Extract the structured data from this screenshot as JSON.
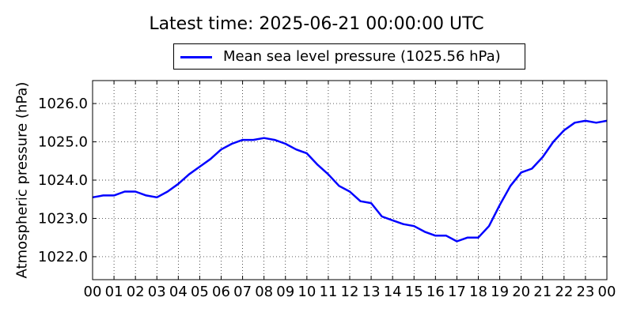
{
  "chart_data": {
    "type": "line",
    "title": "Latest time: 2025-06-21 00:00:00 UTC",
    "ylabel": "Atmospheric pressure (hPa)",
    "xlabel": "",
    "xlim": [
      0,
      24
    ],
    "ylim": [
      1021.4,
      1026.6
    ],
    "grid": true,
    "legend_position": "top-center",
    "series_color": "#0000ff",
    "x_tick_labels": [
      "00",
      "01",
      "02",
      "03",
      "04",
      "05",
      "06",
      "07",
      "08",
      "09",
      "10",
      "11",
      "12",
      "13",
      "14",
      "15",
      "16",
      "17",
      "18",
      "19",
      "20",
      "21",
      "22",
      "23",
      "00"
    ],
    "y_ticks": [
      1022.0,
      1023.0,
      1024.0,
      1025.0,
      1026.0
    ],
    "y_tick_labels": [
      "1022.0",
      "1023.0",
      "1024.0",
      "1025.0",
      "1026.0"
    ],
    "series": [
      {
        "name": "Mean sea level pressure (1025.56 hPa)",
        "x": [
          0,
          0.5,
          1,
          1.5,
          2,
          2.5,
          3,
          3.5,
          4,
          4.5,
          5,
          5.5,
          6,
          6.5,
          7,
          7.5,
          8,
          8.5,
          9,
          9.5,
          10,
          10.5,
          11,
          11.5,
          12,
          12.5,
          13,
          13.5,
          14,
          14.5,
          15,
          15.5,
          16,
          16.5,
          17,
          17.5,
          18,
          18.5,
          19,
          19.5,
          20,
          20.5,
          21,
          21.5,
          22,
          22.5,
          23,
          23.5,
          24
        ],
        "y": [
          1023.55,
          1023.6,
          1023.6,
          1023.7,
          1023.7,
          1023.6,
          1023.55,
          1023.7,
          1023.9,
          1024.15,
          1024.35,
          1024.55,
          1024.8,
          1024.95,
          1025.05,
          1025.05,
          1025.1,
          1025.05,
          1024.95,
          1024.8,
          1024.7,
          1024.4,
          1024.15,
          1023.85,
          1023.7,
          1023.45,
          1023.4,
          1023.05,
          1022.95,
          1022.85,
          1022.8,
          1022.65,
          1022.55,
          1022.55,
          1022.4,
          1022.5,
          1022.5,
          1022.8,
          1023.35,
          1023.85,
          1024.2,
          1024.3,
          1024.6,
          1025.0,
          1025.3,
          1025.5,
          1025.55,
          1025.5,
          1025.55
        ]
      }
    ]
  }
}
